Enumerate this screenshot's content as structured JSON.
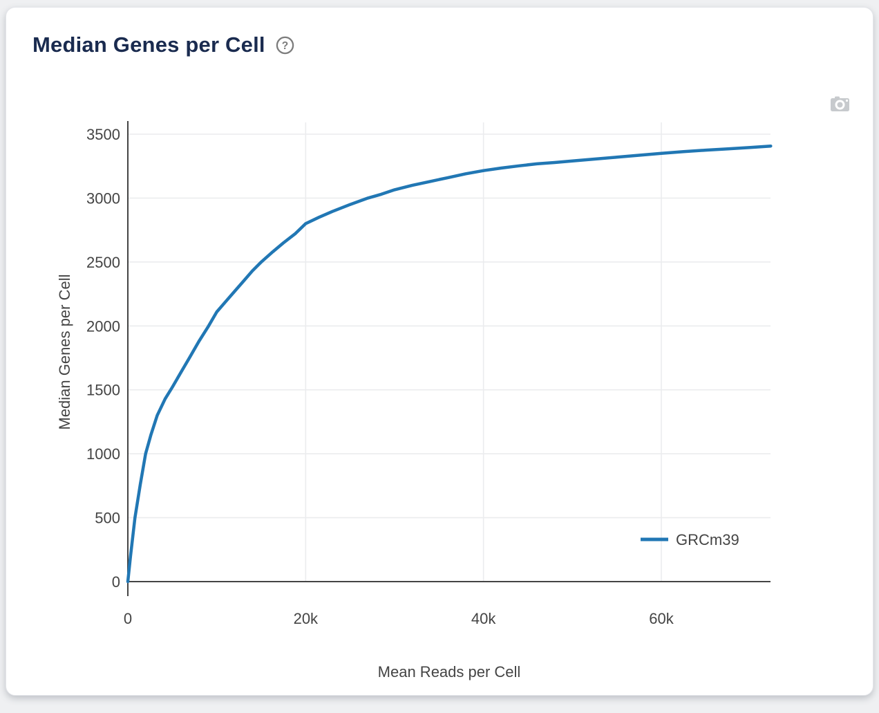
{
  "card": {
    "title": "Median Genes per Cell",
    "help_icon": "question-mark-circle",
    "camera_button": "download-plot-as-png"
  },
  "chart_data": {
    "type": "line",
    "title": "Median Genes per Cell",
    "xlabel": "Mean Reads per Cell",
    "ylabel": "Median Genes per Cell",
    "xlim": [
      0,
      72300
    ],
    "ylim": [
      0,
      3500
    ],
    "grid": true,
    "x_ticks": [
      {
        "value": 0,
        "label": "0"
      },
      {
        "value": 20000,
        "label": "20k"
      },
      {
        "value": 40000,
        "label": "40k"
      },
      {
        "value": 60000,
        "label": "60k"
      }
    ],
    "y_ticks": [
      {
        "value": 0,
        "label": "0"
      },
      {
        "value": 500,
        "label": "500"
      },
      {
        "value": 1000,
        "label": "1000"
      },
      {
        "value": 1500,
        "label": "1500"
      },
      {
        "value": 2000,
        "label": "2000"
      },
      {
        "value": 2500,
        "label": "2500"
      },
      {
        "value": 3000,
        "label": "3000"
      },
      {
        "value": 3500,
        "label": "3500"
      }
    ],
    "legend": {
      "position": "right",
      "entries": [
        {
          "label": "GRCm39",
          "color": "#2177b4"
        }
      ]
    },
    "series": [
      {
        "name": "GRCm39",
        "color": "#2177b4",
        "points": [
          [
            0,
            0
          ],
          [
            300,
            200
          ],
          [
            800,
            500
          ],
          [
            1400,
            760
          ],
          [
            2000,
            1000
          ],
          [
            2600,
            1150
          ],
          [
            3300,
            1300
          ],
          [
            4200,
            1430
          ],
          [
            5000,
            1520
          ],
          [
            6000,
            1640
          ],
          [
            7000,
            1760
          ],
          [
            8000,
            1880
          ],
          [
            9000,
            1990
          ],
          [
            10000,
            2110
          ],
          [
            11000,
            2190
          ],
          [
            12000,
            2270
          ],
          [
            13000,
            2350
          ],
          [
            14000,
            2430
          ],
          [
            15000,
            2500
          ],
          [
            16300,
            2580
          ],
          [
            17500,
            2650
          ],
          [
            18800,
            2720
          ],
          [
            20000,
            2800
          ],
          [
            21500,
            2850
          ],
          [
            23000,
            2895
          ],
          [
            25000,
            2950
          ],
          [
            27000,
            3000
          ],
          [
            28500,
            3030
          ],
          [
            30000,
            3065
          ],
          [
            32000,
            3100
          ],
          [
            34000,
            3130
          ],
          [
            36000,
            3160
          ],
          [
            38000,
            3190
          ],
          [
            40000,
            3215
          ],
          [
            42000,
            3235
          ],
          [
            44000,
            3252
          ],
          [
            46000,
            3268
          ],
          [
            48000,
            3278
          ],
          [
            50000,
            3290
          ],
          [
            52500,
            3305
          ],
          [
            55000,
            3320
          ],
          [
            57500,
            3335
          ],
          [
            60000,
            3350
          ],
          [
            62500,
            3363
          ],
          [
            65000,
            3375
          ],
          [
            67500,
            3385
          ],
          [
            70000,
            3396
          ],
          [
            72300,
            3407
          ]
        ]
      }
    ]
  },
  "colors": {
    "page_bg": "#eff0f2",
    "card_bg": "#ffffff",
    "title_text": "#1a2b4f",
    "axis_text": "#444444",
    "gridline": "#ebecee",
    "axis_line": "#444444",
    "series_blue": "#2177b4",
    "icon_gray": "#7c7c7c",
    "camera_gray": "#c7cacd"
  }
}
